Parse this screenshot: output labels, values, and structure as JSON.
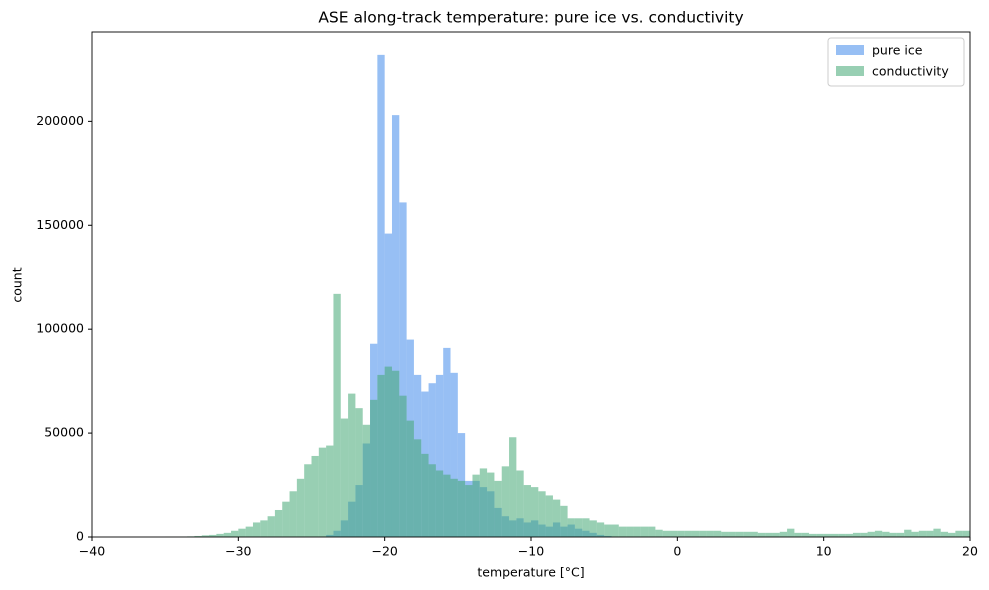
{
  "chart_data": {
    "type": "histogram",
    "title": "ASE along-track temperature: pure ice vs. conductivity",
    "xlabel": "temperature [°C]",
    "ylabel": "count",
    "bins": [
      -40,
      -39.5,
      -39,
      -38.5,
      -38,
      -37.5,
      -37,
      -36.5,
      -36,
      -35.5,
      -35,
      -34.5,
      -34,
      -33.5,
      -33,
      -32.5,
      -32,
      -31.5,
      -31,
      -30.5,
      -30,
      -29.5,
      -29,
      -28.5,
      -28,
      -27.5,
      -27,
      -26.5,
      -26,
      -25.5,
      -25,
      -24.5,
      -24,
      -23.5,
      -23,
      -22.5,
      -22,
      -21.5,
      -21,
      -20.5,
      -20,
      -19.5,
      -19,
      -18.5,
      -18,
      -17.5,
      -17,
      -16.5,
      -16,
      -15.5,
      -15,
      -14.5,
      -14,
      -13.5,
      -13,
      -12.5,
      -12,
      -11.5,
      -11,
      -10.5,
      -10,
      -9.5,
      -9,
      -8.5,
      -8,
      -7.5,
      -7,
      -6.5,
      -6,
      -5.5,
      -5,
      -4.5,
      -4,
      -3.5,
      -3,
      -2.5,
      -2,
      -1.5,
      -1,
      -0.5,
      0,
      0.5,
      1,
      1.5,
      2,
      2.5,
      3,
      3.5,
      4,
      4.5,
      5,
      5.5,
      6,
      6.5,
      7,
      7.5,
      8,
      8.5,
      9,
      9.5,
      10,
      10.5,
      11,
      11.5,
      12,
      12.5,
      13,
      13.5,
      14,
      14.5,
      15,
      15.5,
      16,
      16.5,
      17,
      17.5,
      18,
      18.5,
      19,
      19.5,
      20
    ],
    "series": [
      {
        "name": "pure ice",
        "color": "#428aeb",
        "values": [
          0,
          0,
          0,
          0,
          0,
          0,
          0,
          0,
          0,
          0,
          0,
          0,
          0,
          0,
          0,
          0,
          0,
          0,
          0,
          0,
          0,
          0,
          0,
          0,
          0,
          0,
          0,
          0,
          0,
          0,
          0,
          0,
          1000,
          3000,
          8000,
          17000,
          25000,
          45000,
          93000,
          232000,
          146000,
          203000,
          161000,
          95000,
          78000,
          70000,
          74000,
          78000,
          91000,
          79000,
          50000,
          27000,
          27000,
          24000,
          22000,
          14000,
          10000,
          8000,
          9000,
          7000,
          8000,
          6000,
          5000,
          7000,
          5000,
          6000,
          4000,
          3000,
          2000,
          1000,
          500,
          0,
          0,
          0,
          0,
          0,
          0,
          0,
          0,
          0,
          0,
          0,
          0,
          0,
          0,
          0,
          0,
          0,
          0,
          0,
          0,
          0,
          0,
          0,
          0,
          0,
          0,
          0,
          0,
          0,
          0,
          0,
          0,
          0,
          0,
          0,
          0,
          0,
          0,
          0,
          0,
          0,
          0,
          0,
          0,
          0,
          0,
          0,
          0,
          0
        ]
      },
      {
        "name": "conductivity",
        "color": "#44a875",
        "values": [
          0,
          0,
          0,
          0,
          0,
          0,
          0,
          0,
          0,
          0,
          100,
          100,
          200,
          300,
          500,
          800,
          1000,
          1500,
          2000,
          3000,
          4000,
          5000,
          7000,
          8000,
          10000,
          13000,
          17000,
          22000,
          28000,
          35000,
          39000,
          43000,
          44000,
          117000,
          57000,
          69000,
          62000,
          54000,
          66000,
          78000,
          82000,
          80000,
          68000,
          56000,
          47000,
          40000,
          35000,
          32000,
          30000,
          28000,
          27000,
          25000,
          30000,
          33000,
          31000,
          27000,
          34000,
          48000,
          32000,
          25000,
          24000,
          22000,
          20000,
          18000,
          15000,
          9000,
          9000,
          9000,
          8000,
          7000,
          6000,
          6000,
          5000,
          5000,
          5000,
          5000,
          5000,
          3500,
          3000,
          3000,
          3000,
          3000,
          3000,
          3000,
          3000,
          3000,
          2500,
          2500,
          2500,
          2500,
          2500,
          2000,
          2000,
          2000,
          2500,
          4000,
          2000,
          2000,
          1500,
          1500,
          1500,
          1500,
          1500,
          1500,
          2000,
          2000,
          2500,
          3000,
          2500,
          2000,
          2000,
          3500,
          2500,
          3000,
          3000,
          4000,
          2500,
          2000,
          3000,
          3000
        ]
      }
    ],
    "xlim": [
      -40,
      20
    ],
    "xticks": [
      {
        "value": -40,
        "label": "−40"
      },
      {
        "value": -30,
        "label": "−30"
      },
      {
        "value": -20,
        "label": "−20"
      },
      {
        "value": -10,
        "label": "−10"
      },
      0,
      10,
      20
    ],
    "ylim": [
      0,
      243000
    ],
    "yticks": [
      0,
      50000,
      100000,
      150000,
      200000
    ],
    "legend": "upper right"
  }
}
